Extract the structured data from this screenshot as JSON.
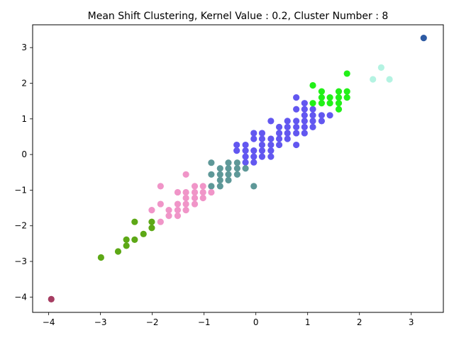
{
  "chart_data": {
    "type": "scatter",
    "title": "Mean Shift Clustering, Kernel Value : 0.2, Cluster Number : 8",
    "xlabel": "",
    "ylabel": "",
    "xlim": [
      -4.31,
      3.62
    ],
    "ylim": [
      -4.43,
      3.64
    ],
    "x_ticks": [
      -4,
      -3,
      -2,
      -1,
      0,
      1,
      2,
      3
    ],
    "y_ticks": [
      -4,
      -3,
      -2,
      -1,
      0,
      1,
      2,
      3
    ],
    "tick_labels_x": [
      "−4",
      "−3",
      "−2",
      "−1",
      "0",
      "1",
      "2",
      "3"
    ],
    "tick_labels_y": [
      "−4",
      "−3",
      "−2",
      "−1",
      "0",
      "1",
      "2",
      "3"
    ],
    "grid": false,
    "series": [
      {
        "color": "#6257f0",
        "points": [
          [
            -0.37,
            0.27
          ],
          [
            -0.37,
            0.11
          ],
          [
            -0.2,
            0.27
          ],
          [
            -0.2,
            0.11
          ],
          [
            -0.2,
            -0.06
          ],
          [
            -0.04,
            0.6
          ],
          [
            -0.04,
            0.44
          ],
          [
            -0.04,
            0.11
          ],
          [
            -0.04,
            -0.06
          ],
          [
            -0.04,
            -0.22
          ],
          [
            -0.2,
            -0.22
          ],
          [
            0.12,
            0.6
          ],
          [
            0.12,
            0.44
          ],
          [
            0.12,
            0.27
          ],
          [
            0.12,
            0.11
          ],
          [
            0.12,
            -0.06
          ],
          [
            0.29,
            0.94
          ],
          [
            0.29,
            0.44
          ],
          [
            0.29,
            0.27
          ],
          [
            0.29,
            0.11
          ],
          [
            0.29,
            -0.06
          ],
          [
            0.45,
            0.77
          ],
          [
            0.45,
            0.6
          ],
          [
            0.45,
            0.44
          ],
          [
            0.45,
            0.27
          ],
          [
            0.61,
            0.94
          ],
          [
            0.61,
            0.77
          ],
          [
            0.61,
            0.6
          ],
          [
            0.61,
            0.44
          ],
          [
            0.78,
            1.6
          ],
          [
            0.78,
            1.27
          ],
          [
            0.78,
            0.94
          ],
          [
            0.78,
            0.77
          ],
          [
            0.78,
            0.6
          ],
          [
            0.78,
            0.27
          ],
          [
            0.94,
            1.44
          ],
          [
            0.94,
            1.27
          ],
          [
            0.94,
            1.1
          ],
          [
            0.94,
            0.94
          ],
          [
            0.94,
            0.77
          ],
          [
            0.94,
            0.6
          ],
          [
            1.1,
            1.27
          ],
          [
            1.1,
            1.1
          ],
          [
            1.1,
            0.94
          ],
          [
            1.1,
            0.77
          ],
          [
            1.27,
            1.1
          ],
          [
            1.27,
            0.94
          ],
          [
            1.43,
            1.1
          ]
        ]
      },
      {
        "color": "#5e9898",
        "points": [
          [
            -0.86,
            -0.23
          ],
          [
            -0.86,
            -0.56
          ],
          [
            -0.86,
            -0.89
          ],
          [
            -0.69,
            -0.39
          ],
          [
            -0.69,
            -0.56
          ],
          [
            -0.69,
            -0.72
          ],
          [
            -0.69,
            -0.89
          ],
          [
            -0.53,
            -0.23
          ],
          [
            -0.53,
            -0.39
          ],
          [
            -0.53,
            -0.56
          ],
          [
            -0.53,
            -0.72
          ],
          [
            -0.36,
            -0.23
          ],
          [
            -0.36,
            -0.39
          ],
          [
            -0.36,
            -0.56
          ],
          [
            -0.2,
            -0.39
          ],
          [
            -0.04,
            -0.89
          ]
        ]
      },
      {
        "color": "#f095c8",
        "points": [
          [
            -1.84,
            -0.89
          ],
          [
            -1.84,
            -1.39
          ],
          [
            -1.84,
            -1.89
          ],
          [
            -2.01,
            -1.56
          ],
          [
            -1.68,
            -1.56
          ],
          [
            -1.68,
            -1.72
          ],
          [
            -1.51,
            -1.06
          ],
          [
            -1.51,
            -1.39
          ],
          [
            -1.51,
            -1.56
          ],
          [
            -1.51,
            -1.72
          ],
          [
            -1.35,
            -0.56
          ],
          [
            -1.35,
            -1.06
          ],
          [
            -1.35,
            -1.22
          ],
          [
            -1.35,
            -1.39
          ],
          [
            -1.35,
            -1.56
          ],
          [
            -1.18,
            -0.89
          ],
          [
            -1.18,
            -1.06
          ],
          [
            -1.18,
            -1.22
          ],
          [
            -1.18,
            -1.39
          ],
          [
            -1.02,
            -0.89
          ],
          [
            -1.02,
            -1.06
          ],
          [
            -1.02,
            -1.22
          ],
          [
            -0.86,
            -1.06
          ]
        ]
      },
      {
        "color": "#5da816",
        "points": [
          [
            -2.99,
            -2.89
          ],
          [
            -2.66,
            -2.72
          ],
          [
            -2.5,
            -2.39
          ],
          [
            -2.5,
            -2.56
          ],
          [
            -2.34,
            -1.89
          ],
          [
            -2.34,
            -2.39
          ],
          [
            -2.17,
            -2.23
          ],
          [
            -2.01,
            -1.89
          ],
          [
            -2.01,
            -2.06
          ]
        ]
      },
      {
        "color": "#22f018",
        "points": [
          [
            1.1,
            1.94
          ],
          [
            1.1,
            1.44
          ],
          [
            1.27,
            1.77
          ],
          [
            1.27,
            1.6
          ],
          [
            1.27,
            1.44
          ],
          [
            1.43,
            1.6
          ],
          [
            1.43,
            1.44
          ],
          [
            1.6,
            1.77
          ],
          [
            1.6,
            1.6
          ],
          [
            1.6,
            1.44
          ],
          [
            1.6,
            1.27
          ],
          [
            1.76,
            2.27
          ],
          [
            1.76,
            1.77
          ],
          [
            1.76,
            1.6
          ]
        ]
      },
      {
        "color": "#b4f3e2",
        "points": [
          [
            2.26,
            2.11
          ],
          [
            2.42,
            2.44
          ],
          [
            2.58,
            2.11
          ]
        ]
      },
      {
        "color": "#2d5aa3",
        "points": [
          [
            3.24,
            3.27
          ]
        ]
      },
      {
        "color": "#a63d62",
        "points": [
          [
            -3.95,
            -4.06
          ]
        ]
      }
    ]
  }
}
